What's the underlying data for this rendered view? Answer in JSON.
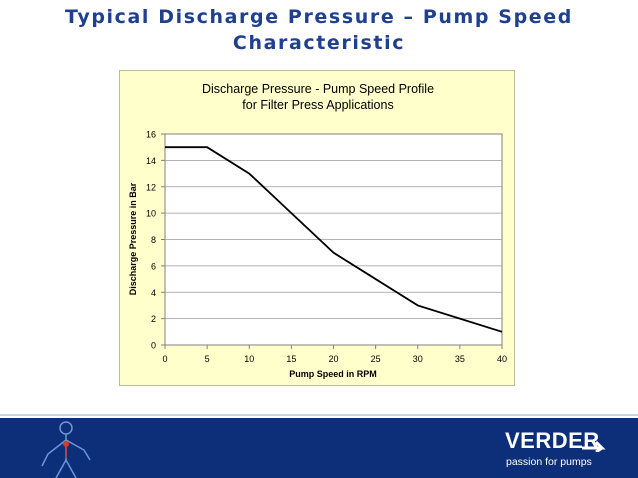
{
  "slide": {
    "title_line1": "Typical Discharge Pressure – Pump Speed",
    "title_line2": "Characteristic"
  },
  "brand": {
    "name": "VERDER",
    "tagline": "passion for pumps",
    "footer_color": "#0d2f7a",
    "title_color": "#1f3f8f"
  },
  "chart_data": {
    "type": "line",
    "title_line1": "Discharge Pressure - Pump Speed Profile",
    "title_line2": "for Filter Press Applications",
    "xlabel": "Pump Speed in RPM",
    "ylabel": "Discharge Pressure in Bar",
    "xlim": [
      0,
      40
    ],
    "ylim": [
      0,
      16
    ],
    "xticks": [
      0,
      5,
      10,
      15,
      20,
      25,
      30,
      35,
      40
    ],
    "yticks": [
      0,
      2,
      4,
      6,
      8,
      10,
      12,
      14,
      16
    ],
    "grid": true,
    "background": "#ffffcc",
    "line_color": "#000000",
    "series": [
      {
        "x": [
          0,
          5,
          10,
          15,
          20,
          25,
          30,
          35,
          40
        ],
        "y": [
          15,
          15,
          13,
          10,
          7,
          5,
          3,
          2,
          1
        ]
      }
    ]
  }
}
